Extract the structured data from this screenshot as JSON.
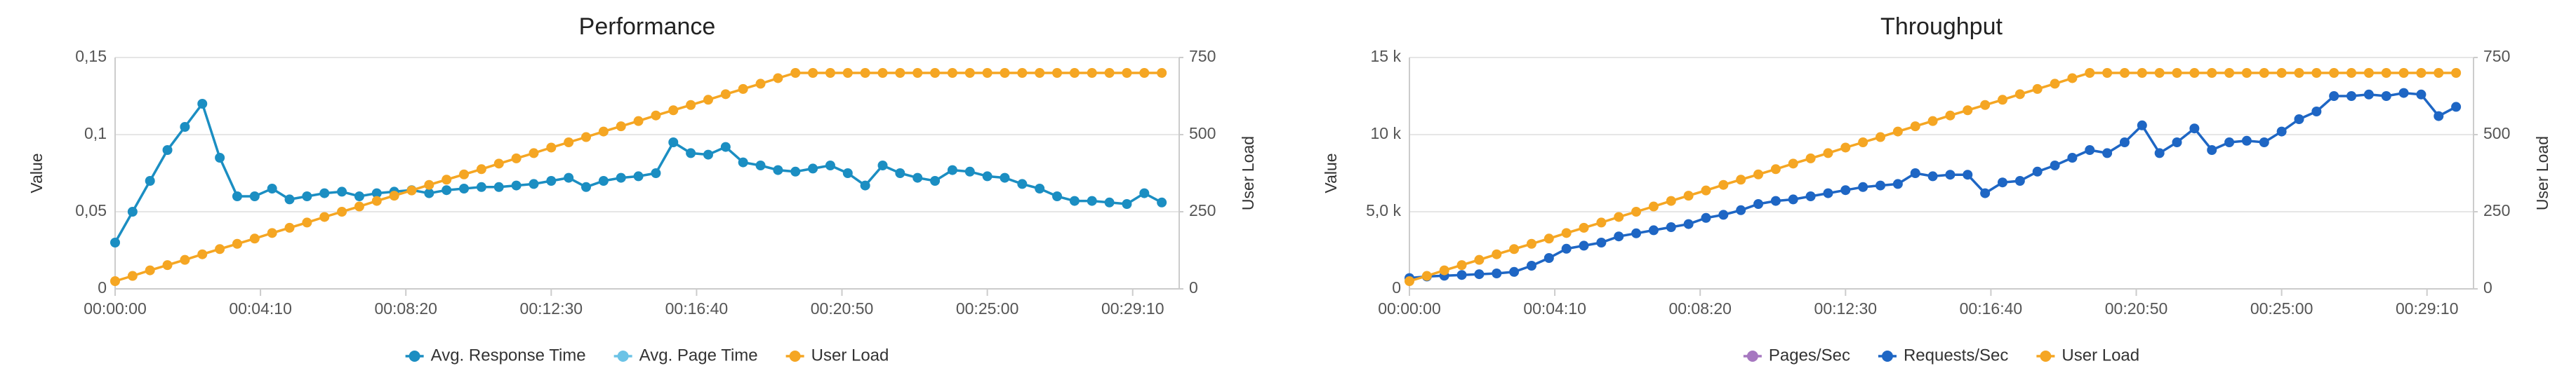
{
  "chart_data": [
    {
      "type": "line",
      "title": "Performance",
      "ylabel": "Value",
      "y2label": "User Load",
      "x": [
        0,
        30,
        60,
        90,
        120,
        150,
        180,
        210,
        240,
        270,
        300,
        330,
        360,
        390,
        420,
        450,
        480,
        510,
        540,
        570,
        600,
        630,
        660,
        690,
        720,
        750,
        780,
        810,
        840,
        870,
        900,
        930,
        960,
        990,
        1020,
        1050,
        1080,
        1110,
        1140,
        1170,
        1200,
        1230,
        1260,
        1290,
        1320,
        1350,
        1380,
        1410,
        1440,
        1470,
        1500,
        1530,
        1560,
        1590,
        1620,
        1650,
        1680,
        1710,
        1740,
        1770,
        1800
      ],
      "xlim": [
        0,
        1830
      ],
      "xticks": [
        {
          "value": 0,
          "label": "00:00:00"
        },
        {
          "value": 250,
          "label": "00:04:10"
        },
        {
          "value": 500,
          "label": "00:08:20"
        },
        {
          "value": 750,
          "label": "00:12:30"
        },
        {
          "value": 1000,
          "label": "00:16:40"
        },
        {
          "value": 1250,
          "label": "00:20:50"
        },
        {
          "value": 1500,
          "label": "00:25:00"
        },
        {
          "value": 1750,
          "label": "00:29:10"
        }
      ],
      "ylim": [
        0,
        0.15
      ],
      "yticks": [
        0,
        {
          "value": 0.05,
          "label": "0,05"
        },
        {
          "value": 0.1,
          "label": "0,1"
        },
        {
          "value": 0.15,
          "label": "0,15"
        }
      ],
      "y2lim": [
        0,
        750
      ],
      "y2ticks": [
        0,
        250,
        500,
        750
      ],
      "grid": true,
      "legend": "bottom",
      "series": [
        {
          "name": "Avg. Response Time",
          "color": "#1b8ec2",
          "values": [
            0.03,
            0.05,
            0.07,
            0.09,
            0.105,
            0.12,
            0.085,
            0.06,
            0.06,
            0.065,
            0.058,
            0.06,
            0.062,
            0.063,
            0.06,
            0.062,
            0.063,
            0.064,
            0.062,
            0.064,
            0.065,
            0.066,
            0.066,
            0.067,
            0.068,
            0.07,
            0.072,
            0.066,
            0.07,
            0.072,
            0.073,
            0.075,
            0.095,
            0.088,
            0.087,
            0.092,
            0.082,
            0.08,
            0.077,
            0.076,
            0.078,
            0.08,
            0.075,
            0.067,
            0.08,
            0.075,
            0.072,
            0.07,
            0.077,
            0.076,
            0.073,
            0.072,
            0.068,
            0.065,
            0.06,
            0.057,
            0.057,
            0.056,
            0.055,
            0.062,
            0.056
          ]
        },
        {
          "name": "Avg. Page Time",
          "color": "#6cc3e6",
          "values": [
            null,
            null,
            null,
            null,
            null,
            null,
            null,
            null,
            null,
            null,
            null,
            null,
            null,
            null,
            null,
            null,
            null,
            null,
            null,
            null,
            null,
            null,
            null,
            null,
            null,
            null,
            null,
            null,
            null,
            null,
            null,
            null,
            null,
            null,
            null,
            null,
            null,
            null,
            null,
            null,
            null,
            null,
            null,
            null,
            null,
            null,
            null,
            null,
            null,
            null,
            null,
            null,
            null,
            null,
            null,
            null,
            null,
            null,
            null,
            null,
            null
          ]
        },
        {
          "name": "User Load",
          "color": "#f5a623",
          "axis": "y2",
          "values": [
            25,
            42,
            60,
            77,
            94,
            112,
            129,
            146,
            163,
            181,
            198,
            215,
            233,
            250,
            267,
            285,
            302,
            319,
            337,
            354,
            371,
            388,
            406,
            423,
            440,
            458,
            475,
            492,
            510,
            527,
            544,
            562,
            579,
            596,
            613,
            631,
            648,
            665,
            683,
            700,
            700,
            700,
            700,
            700,
            700,
            700,
            700,
            700,
            700,
            700,
            700,
            700,
            700,
            700,
            700,
            700,
            700,
            700,
            700,
            700,
            700
          ]
        }
      ]
    },
    {
      "type": "line",
      "title": "Throughput",
      "ylabel": "Value",
      "y2label": "User Load",
      "x": [
        0,
        30,
        60,
        90,
        120,
        150,
        180,
        210,
        240,
        270,
        300,
        330,
        360,
        390,
        420,
        450,
        480,
        510,
        540,
        570,
        600,
        630,
        660,
        690,
        720,
        750,
        780,
        810,
        840,
        870,
        900,
        930,
        960,
        990,
        1020,
        1050,
        1080,
        1110,
        1140,
        1170,
        1200,
        1230,
        1260,
        1290,
        1320,
        1350,
        1380,
        1410,
        1440,
        1470,
        1500,
        1530,
        1560,
        1590,
        1620,
        1650,
        1680,
        1710,
        1740,
        1770,
        1800
      ],
      "xlim": [
        0,
        1830
      ],
      "xticks": [
        {
          "value": 0,
          "label": "00:00:00"
        },
        {
          "value": 250,
          "label": "00:04:10"
        },
        {
          "value": 500,
          "label": "00:08:20"
        },
        {
          "value": 750,
          "label": "00:12:30"
        },
        {
          "value": 1000,
          "label": "00:16:40"
        },
        {
          "value": 1250,
          "label": "00:20:50"
        },
        {
          "value": 1500,
          "label": "00:25:00"
        },
        {
          "value": 1750,
          "label": "00:29:10"
        }
      ],
      "ylim": [
        0,
        15000
      ],
      "yticks": [
        0,
        {
          "value": 5000,
          "label": "5,0 k"
        },
        {
          "value": 10000,
          "label": "10 k"
        },
        {
          "value": 15000,
          "label": "15 k"
        }
      ],
      "y2lim": [
        0,
        750
      ],
      "y2ticks": [
        0,
        250,
        500,
        750
      ],
      "grid": true,
      "legend": "bottom",
      "series": [
        {
          "name": "Pages/Sec",
          "color": "#a678c0",
          "values": [
            null,
            null,
            null,
            null,
            null,
            null,
            null,
            null,
            null,
            null,
            null,
            null,
            null,
            null,
            null,
            null,
            null,
            null,
            null,
            null,
            null,
            null,
            null,
            null,
            null,
            null,
            null,
            null,
            null,
            null,
            null,
            null,
            null,
            null,
            null,
            null,
            null,
            null,
            null,
            null,
            null,
            null,
            null,
            null,
            null,
            null,
            null,
            null,
            null,
            null,
            null,
            null,
            null,
            null,
            null,
            null,
            null,
            null,
            null,
            null,
            null
          ]
        },
        {
          "name": "Requests/Sec",
          "color": "#1e66c4",
          "values": [
            700,
            800,
            850,
            900,
            950,
            1000,
            1100,
            1500,
            2000,
            2600,
            2800,
            3000,
            3400,
            3600,
            3800,
            4000,
            4200,
            4600,
            4800,
            5100,
            5500,
            5700,
            5800,
            6000,
            6200,
            6400,
            6600,
            6700,
            6800,
            7500,
            7300,
            7400,
            7400,
            6200,
            6900,
            7000,
            7600,
            8000,
            8500,
            9000,
            8800,
            9500,
            10600,
            8800,
            9500,
            10400,
            9000,
            9500,
            9600,
            9500,
            10200,
            11000,
            11500,
            12500,
            12500,
            12600,
            12500,
            12700,
            12600,
            11200,
            11800
          ]
        },
        {
          "name": "User Load",
          "color": "#f5a623",
          "axis": "y2",
          "values": [
            25,
            42,
            60,
            77,
            94,
            112,
            129,
            146,
            163,
            181,
            198,
            215,
            233,
            250,
            267,
            285,
            302,
            319,
            337,
            354,
            371,
            388,
            406,
            423,
            440,
            458,
            475,
            492,
            510,
            527,
            544,
            562,
            579,
            596,
            613,
            631,
            648,
            665,
            683,
            700,
            700,
            700,
            700,
            700,
            700,
            700,
            700,
            700,
            700,
            700,
            700,
            700,
            700,
            700,
            700,
            700,
            700,
            700,
            700,
            700,
            700
          ]
        }
      ]
    }
  ]
}
